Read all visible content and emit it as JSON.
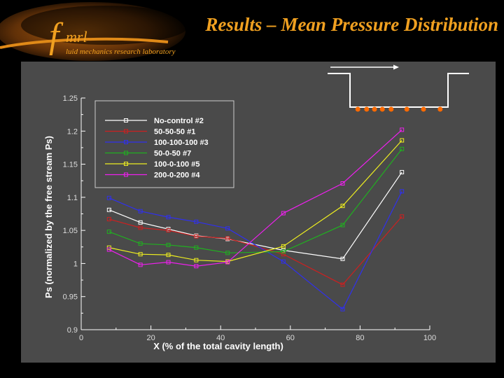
{
  "logo": {
    "f": "f",
    "mrl": "mrl",
    "subtitle": "luid mechanics research laboratory"
  },
  "slide_title": "Results – Mean Pressure Distribution",
  "colors": {
    "accent": "#f0a020",
    "panel": "#4a4a4a",
    "orifice": "#ff6a00"
  },
  "chart_data": {
    "type": "line",
    "xlabel": "X (% of the total cavity length)",
    "ylabel": "Ps (normalized by the free stream Ps)",
    "xlim": [
      0,
      100
    ],
    "ylim": [
      0.9,
      1.25
    ],
    "xticks": [
      0,
      20,
      40,
      60,
      80,
      100
    ],
    "yticks": [
      0.9,
      0.95,
      1,
      1.05,
      1.1,
      1.15,
      1.2,
      1.25
    ],
    "grid": false,
    "legend_position": "top-left",
    "x": [
      8,
      17,
      25,
      33,
      42,
      58,
      75,
      92
    ],
    "series": [
      {
        "name": "No-control #2",
        "color": "#ffffff",
        "values": [
          1.081,
          1.062,
          1.052,
          1.042,
          1.037,
          1.02,
          1.007,
          1.138
        ]
      },
      {
        "name": "50-50-50 #1",
        "color": "#cc2020",
        "values": [
          1.067,
          1.054,
          1.05,
          1.041,
          1.038,
          1.014,
          0.968,
          1.071
        ]
      },
      {
        "name": "100-100-100 #3",
        "color": "#3030ee",
        "values": [
          1.099,
          1.079,
          1.07,
          1.063,
          1.053,
          1.003,
          0.931,
          1.109
        ]
      },
      {
        "name": "50-0-50 #7",
        "color": "#20b020",
        "values": [
          1.048,
          1.03,
          1.028,
          1.024,
          1.016,
          1.018,
          1.058,
          1.173
        ]
      },
      {
        "name": "100-0-100 #5",
        "color": "#eeee20",
        "values": [
          1.024,
          1.014,
          1.013,
          1.005,
          1.003,
          1.026,
          1.087,
          1.186
        ]
      },
      {
        "name": "200-0-200 #4",
        "color": "#ee20ee",
        "values": [
          1.021,
          0.998,
          1.002,
          0.996,
          1.002,
          1.076,
          1.121,
          1.202
        ]
      }
    ]
  }
}
